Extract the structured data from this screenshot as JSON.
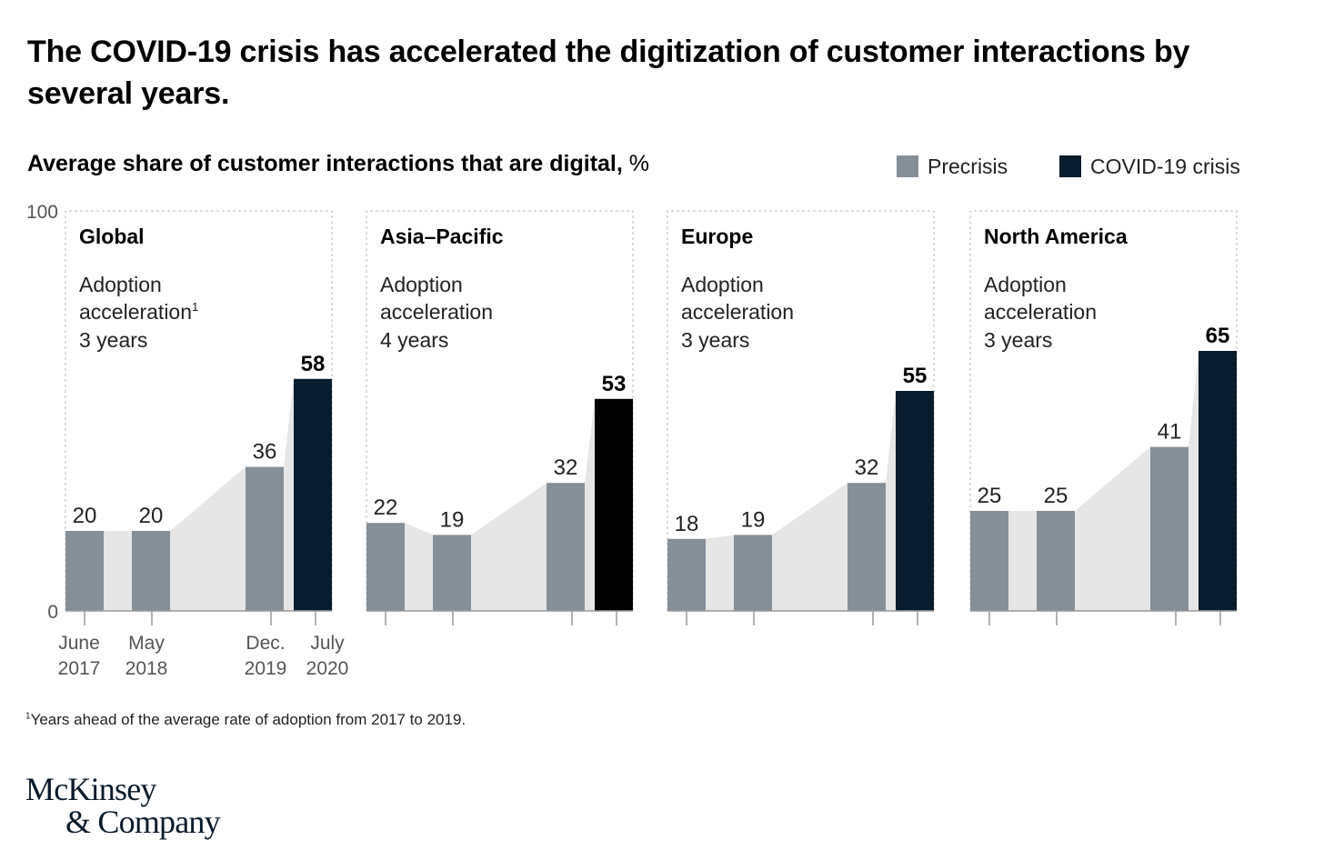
{
  "title": "The COVID-19 crisis has accelerated the digitization of customer interactions by several years.",
  "subtitle": "Average share of customer interactions that are digital,",
  "subtitle_unit": "%",
  "legend": [
    {
      "label": "Precrisis",
      "color": "#858f98"
    },
    {
      "label": "COVID-19 crisis",
      "color": "#071c2c"
    }
  ],
  "footnote": {
    "marker": "1",
    "text": "Years ahead of the average rate of adoption from 2017 to 2019."
  },
  "logo": {
    "line1": "McKinsey",
    "line2": "& Company"
  },
  "chart_data": {
    "type": "bar",
    "ylim": [
      0,
      100
    ],
    "y_ticks": [
      "100",
      "0"
    ],
    "categories": [
      "June 2017",
      "May 2018",
      "Dec. 2019",
      "July 2020"
    ],
    "x_tick_lines": [
      [
        "June",
        "2017"
      ],
      [
        "May",
        "2018"
      ],
      [
        "Dec.",
        "2019"
      ],
      [
        "July",
        "2020"
      ]
    ],
    "colors": {
      "precrisis": "#858f98",
      "crisis": "#071c2c",
      "crisis_asia": "#000000",
      "area": "#e6e6e6"
    },
    "panels": [
      {
        "name": "Global",
        "adoption_label": [
          "Adoption",
          "acceleration"
        ],
        "footnote_marker": "1",
        "adoption_value": "3 years",
        "values": [
          20,
          20,
          36,
          58
        ]
      },
      {
        "name": "Asia–Pacific",
        "adoption_label": [
          "Adoption",
          "acceleration"
        ],
        "footnote_marker": "",
        "adoption_value": "4 years",
        "values": [
          22,
          19,
          32,
          53
        ]
      },
      {
        "name": "Europe",
        "adoption_label": [
          "Adoption",
          "acceleration"
        ],
        "footnote_marker": "",
        "adoption_value": "3 years",
        "values": [
          18,
          19,
          32,
          55
        ]
      },
      {
        "name": "North America",
        "adoption_label": [
          "Adoption",
          "acceleration"
        ],
        "footnote_marker": "",
        "adoption_value": "3 years",
        "values": [
          25,
          25,
          41,
          65
        ]
      }
    ]
  }
}
